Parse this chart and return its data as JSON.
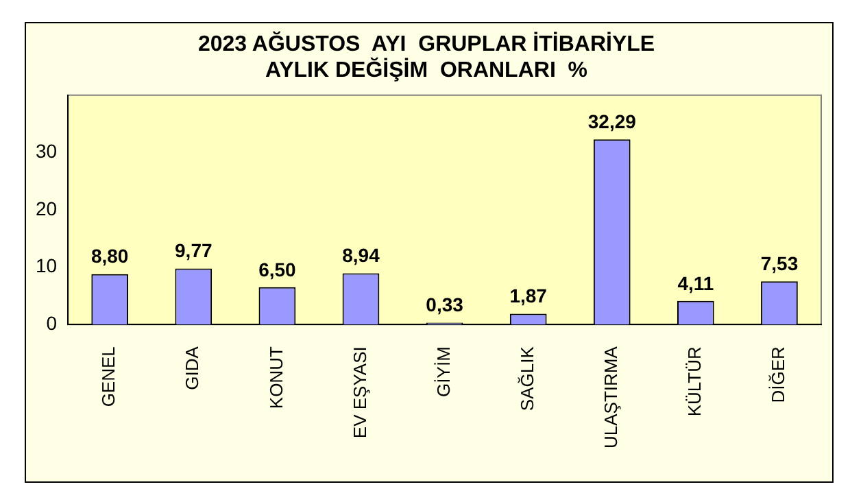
{
  "chart_data": {
    "type": "bar",
    "title": "2023 AĞUSTOS  AYI  GRUPLAR İTİBARİYLE\nAYLIK DEĞİŞİM  ORANLARI  %",
    "categories": [
      "GENEL",
      "GIDA",
      "KONUT",
      "EV EŞYASI",
      "GİYİM",
      "SAĞLIK",
      "ULAŞTIRMA",
      "KÜLTÜR",
      "DİĞER"
    ],
    "values": [
      8.8,
      9.77,
      6.5,
      8.94,
      0.33,
      1.87,
      32.29,
      4.11,
      7.53
    ],
    "value_labels": [
      "8,80",
      "9,77",
      "6,50",
      "8,94",
      "0,33",
      "1,87",
      "32,29",
      "4,11",
      "7,53"
    ],
    "color": "#9999ff",
    "ylim": [
      0,
      40
    ],
    "yticks": [
      0,
      10,
      20,
      30
    ],
    "grid": false,
    "legend": false
  }
}
